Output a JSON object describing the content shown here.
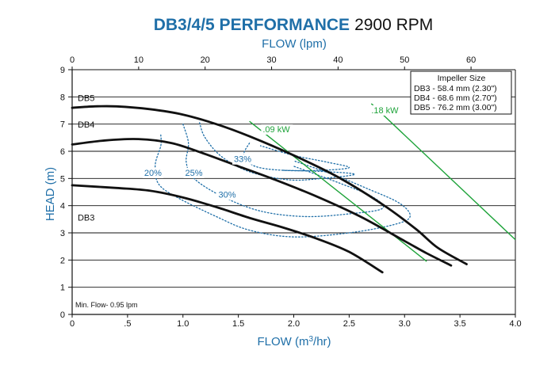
{
  "chart_data": {
    "type": "line",
    "title_main": "DB3/4/5 PERFORMANCE",
    "title_speed": "2900 RPM",
    "xlabel_bottom": "FLOW (m",
    "xlabel_bottom_sup": "3",
    "xlabel_bottom_tail": "/hr)",
    "xlabel_top": "FLOW (lpm)",
    "ylabel": "HEAD (m)",
    "xlim": [
      0,
      4.0
    ],
    "ylim": [
      0,
      9
    ],
    "x_ticks": [
      {
        "value": 0,
        "label": "0"
      },
      {
        "value": 0.5,
        "label": ".5"
      },
      {
        "value": 1.0,
        "label": "1.0"
      },
      {
        "value": 1.5,
        "label": "1.5"
      },
      {
        "value": 2.0,
        "label": "2.0"
      },
      {
        "value": 2.5,
        "label": "2.5"
      },
      {
        "value": 3.0,
        "label": "3.0"
      },
      {
        "value": 3.5,
        "label": "3.5"
      },
      {
        "value": 4.0,
        "label": "4.0"
      }
    ],
    "top_ticks": [
      {
        "value": 0,
        "label": "0"
      },
      {
        "value": 10,
        "label": "10"
      },
      {
        "value": 20,
        "label": "20"
      },
      {
        "value": 30,
        "label": "30"
      },
      {
        "value": 40,
        "label": "40"
      },
      {
        "value": 50,
        "label": "50"
      },
      {
        "value": 60,
        "label": "60"
      }
    ],
    "y_ticks": [
      {
        "value": 0,
        "label": "0"
      },
      {
        "value": 1,
        "label": "1"
      },
      {
        "value": 2,
        "label": "2"
      },
      {
        "value": 3,
        "label": "3"
      },
      {
        "value": 4,
        "label": "4"
      },
      {
        "value": 5,
        "label": "5"
      },
      {
        "value": 6,
        "label": "6"
      },
      {
        "value": 7,
        "label": "7"
      },
      {
        "value": 8,
        "label": "8"
      },
      {
        "value": 9,
        "label": "9"
      }
    ],
    "grid": "horizontal",
    "series": [
      {
        "name": "DB5",
        "label_at": {
          "x": 0.05,
          "y": 7.85
        },
        "points": [
          [
            0,
            7.6
          ],
          [
            0.2,
            7.65
          ],
          [
            0.4,
            7.65
          ],
          [
            0.7,
            7.55
          ],
          [
            1.0,
            7.35
          ],
          [
            1.3,
            7.0
          ],
          [
            1.6,
            6.55
          ],
          [
            2.0,
            5.85
          ],
          [
            2.4,
            5.05
          ],
          [
            2.8,
            4.05
          ],
          [
            3.1,
            3.15
          ],
          [
            3.3,
            2.45
          ],
          [
            3.56,
            1.85
          ]
        ]
      },
      {
        "name": "DB4",
        "label_at": {
          "x": 0.05,
          "y": 6.88
        },
        "points": [
          [
            0,
            6.25
          ],
          [
            0.3,
            6.4
          ],
          [
            0.6,
            6.45
          ],
          [
            0.9,
            6.3
          ],
          [
            1.2,
            5.9
          ],
          [
            1.5,
            5.45
          ],
          [
            1.8,
            5.0
          ],
          [
            2.2,
            4.35
          ],
          [
            2.6,
            3.6
          ],
          [
            3.0,
            2.7
          ],
          [
            3.2,
            2.25
          ],
          [
            3.42,
            1.8
          ]
        ]
      },
      {
        "name": "DB3",
        "label_at": {
          "x": 0.05,
          "y": 3.45
        },
        "points": [
          [
            0,
            4.75
          ],
          [
            0.4,
            4.65
          ],
          [
            0.7,
            4.55
          ],
          [
            1.0,
            4.3
          ],
          [
            1.3,
            3.95
          ],
          [
            1.6,
            3.55
          ],
          [
            1.9,
            3.2
          ],
          [
            2.2,
            2.8
          ],
          [
            2.5,
            2.3
          ],
          [
            2.8,
            1.55
          ]
        ]
      }
    ],
    "efficiency_curves": [
      {
        "label": "20%",
        "label_at": {
          "x": 0.65,
          "y": 5.1
        },
        "points": [
          [
            0.8,
            6.6
          ],
          [
            0.8,
            6.2
          ],
          [
            0.75,
            5.5
          ],
          [
            0.78,
            4.8
          ],
          [
            0.95,
            4.3
          ],
          [
            1.3,
            3.6
          ],
          [
            1.6,
            3.1
          ],
          [
            2.0,
            2.85
          ],
          [
            2.5,
            3.0
          ],
          [
            2.9,
            3.3
          ],
          [
            3.05,
            3.6
          ],
          [
            2.95,
            4.1
          ],
          [
            2.65,
            4.65
          ],
          [
            2.35,
            5.15
          ],
          [
            2.0,
            5.65
          ]
        ]
      },
      {
        "label": "25%",
        "label_at": {
          "x": 1.02,
          "y": 5.1
        },
        "points": [
          [
            1.0,
            7.0
          ],
          [
            1.05,
            6.3
          ],
          [
            1.03,
            5.6
          ],
          [
            1.1,
            5.0
          ],
          [
            1.35,
            4.35
          ],
          [
            1.7,
            3.8
          ],
          [
            2.1,
            3.6
          ],
          [
            2.5,
            3.7
          ],
          [
            2.8,
            3.9
          ],
          [
            2.7,
            4.35
          ],
          [
            2.4,
            4.85
          ],
          [
            2.0,
            5.45
          ]
        ]
      },
      {
        "label": "30%",
        "label_at": {
          "x": 1.32,
          "y": 4.3
        },
        "points": [
          [
            1.15,
            7.05
          ],
          [
            1.2,
            6.5
          ],
          [
            1.35,
            5.8
          ],
          [
            1.6,
            5.25
          ],
          [
            1.95,
            4.95
          ],
          [
            2.25,
            5.0
          ],
          [
            2.55,
            5.15
          ],
          [
            2.3,
            5.25
          ],
          [
            1.9,
            5.3
          ]
        ]
      },
      {
        "label": "33%",
        "label_at": {
          "x": 1.46,
          "y": 5.6
        },
        "points": [
          [
            1.6,
            6.3
          ],
          [
            1.55,
            5.85
          ],
          [
            1.65,
            5.45
          ],
          [
            1.9,
            5.3
          ],
          [
            2.25,
            5.3
          ],
          [
            2.5,
            5.4
          ],
          [
            2.3,
            5.6
          ],
          [
            2.0,
            5.85
          ],
          [
            1.7,
            6.2
          ]
        ]
      }
    ],
    "power_lines": [
      {
        "label": ".09 kW",
        "label_at": {
          "x": 1.72,
          "y": 6.7
        },
        "points": [
          [
            1.6,
            7.1
          ],
          [
            3.2,
            1.95
          ]
        ]
      },
      {
        "label": ".18 kW",
        "label_at": {
          "x": 2.7,
          "y": 7.4
        },
        "points": [
          [
            2.7,
            7.75
          ],
          [
            4.0,
            2.75
          ]
        ]
      }
    ],
    "legend": {
      "position": "top-right",
      "title": "Impeller Size",
      "entries": [
        "DB3 - 58.4 mm (2.30\")",
        "DB4 - 68.6 mm (2.70\")",
        "DB5 - 76.2 mm (3.00\")"
      ]
    },
    "annotation_min_flow": "Min. Flow-  0.95 lpm",
    "colors": {
      "title": "#1f6fa8",
      "axis_title": "#1f6fa8",
      "pump_curve": "#111111",
      "efficiency": "#1f6fa8",
      "power": "#1ea33a",
      "grid": "#111111"
    }
  }
}
